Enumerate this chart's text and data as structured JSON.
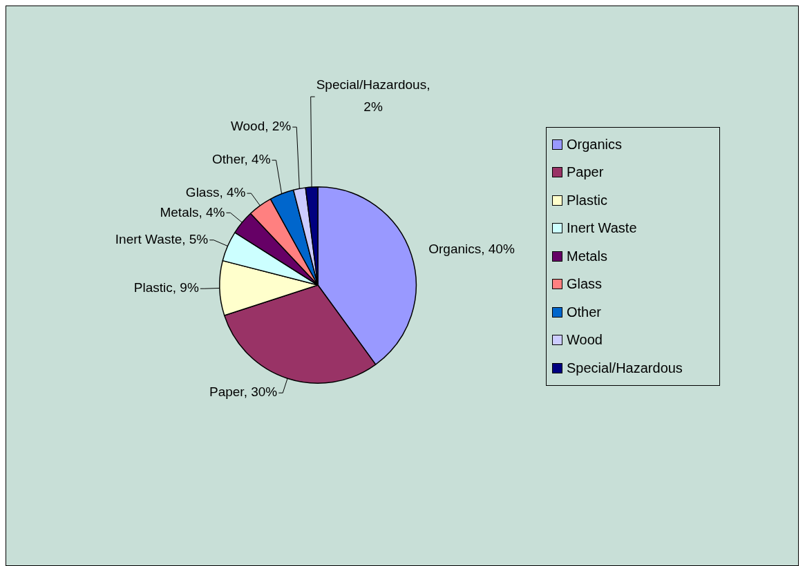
{
  "chart_data": {
    "type": "pie",
    "categories": [
      "Organics",
      "Paper",
      "Plastic",
      "Inert Waste",
      "Metals",
      "Glass",
      "Other",
      "Wood",
      "Special/Hazardous"
    ],
    "values": [
      40,
      30,
      9,
      5,
      4,
      4,
      4,
      2,
      2
    ],
    "value_labels": [
      "Organics, 40%",
      "Paper, 30%",
      "Plastic, 9%",
      "Inert Waste, 5%",
      "Metals, 4%",
      "Glass, 4%",
      "Other, 4%",
      "Wood, 2%",
      "Special/Hazardous, 2%"
    ],
    "colors": [
      "#9999ff",
      "#993366",
      "#ffffcc",
      "#ccffff",
      "#660066",
      "#ff8080",
      "#0066cc",
      "#ccccff",
      "#000080"
    ],
    "legend": "right"
  }
}
